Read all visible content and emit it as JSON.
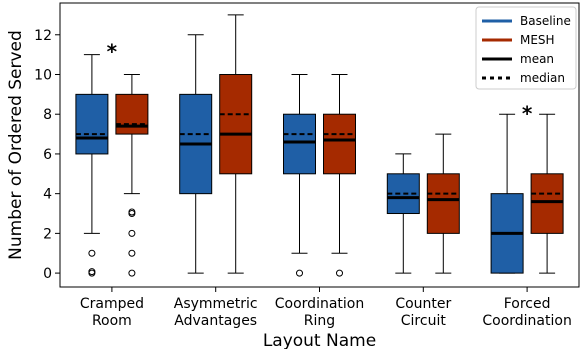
{
  "chart_data": {
    "type": "box",
    "title": "",
    "xlabel": "Layout Name",
    "ylabel": "Number of Ordered Served",
    "ylim": [
      -0.7,
      13.6
    ],
    "yticks": [
      0,
      2,
      4,
      6,
      8,
      10,
      12
    ],
    "grid": false,
    "legend_position": "top-right",
    "categories": [
      [
        "Cramped",
        "Room"
      ],
      [
        "Asymmetric",
        "Advantages"
      ],
      [
        "Coordination",
        "Ring"
      ],
      [
        "Counter",
        "Circuit"
      ],
      [
        "Forced",
        "Coordination"
      ]
    ],
    "colors": {
      "Baseline": "#1f5fa6",
      "MESH": "#a52a00"
    },
    "series": [
      {
        "name": "Baseline",
        "boxes": [
          {
            "whislo": 2,
            "q1": 6,
            "med": 7,
            "mean": 6.8,
            "q3": 9,
            "whishi": 11,
            "fliers": [
              1,
              0,
              0
            ]
          },
          {
            "whislo": 0,
            "q1": 4,
            "med": 7,
            "mean": 6.5,
            "q3": 9,
            "whishi": 12,
            "fliers": []
          },
          {
            "whislo": 1,
            "q1": 5,
            "med": 7,
            "mean": 6.6,
            "q3": 8,
            "whishi": 10,
            "fliers": [
              0
            ]
          },
          {
            "whislo": 0,
            "q1": 3,
            "med": 4,
            "mean": 3.8,
            "q3": 5,
            "whishi": 6,
            "fliers": []
          },
          {
            "whislo": 0,
            "q1": 0,
            "med": 2,
            "mean": 2.0,
            "q3": 4,
            "whishi": 8,
            "fliers": []
          }
        ]
      },
      {
        "name": "MESH",
        "boxes": [
          {
            "whislo": 4,
            "q1": 7,
            "med": 7.5,
            "mean": 7.4,
            "q3": 9,
            "whishi": 10,
            "fliers": [
              3,
              3,
              2,
              1,
              0
            ]
          },
          {
            "whislo": 0,
            "q1": 5,
            "med": 8,
            "mean": 7.0,
            "q3": 10,
            "whishi": 13,
            "fliers": []
          },
          {
            "whislo": 1,
            "q1": 5,
            "med": 7,
            "mean": 6.7,
            "q3": 8,
            "whishi": 10,
            "fliers": [
              0
            ]
          },
          {
            "whislo": 0,
            "q1": 2,
            "med": 4,
            "mean": 3.7,
            "q3": 5,
            "whishi": 7,
            "fliers": []
          },
          {
            "whislo": 0,
            "q1": 2,
            "med": 4,
            "mean": 3.6,
            "q3": 5,
            "whishi": 8,
            "fliers": []
          }
        ]
      }
    ],
    "annotations": [
      {
        "text": "*",
        "category": 0,
        "y": 11.4
      },
      {
        "text": "*",
        "category": 4,
        "y": 8.3
      }
    ],
    "legend": [
      {
        "label": "Baseline",
        "style": "Baseline"
      },
      {
        "label": "MESH",
        "style": "MESH"
      },
      {
        "label": "mean",
        "style": "mean"
      },
      {
        "label": "median",
        "style": "median"
      }
    ]
  }
}
